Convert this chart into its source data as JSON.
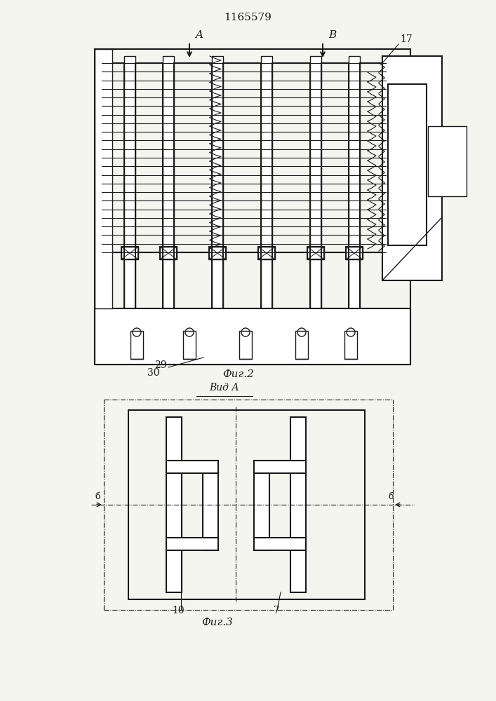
{
  "title": "1165579",
  "fig2_label": "Фиг.2",
  "fig3_label": "Фиг.3",
  "vid_a_label": "Вид А",
  "bg_color": "#f5f5f0",
  "line_color": "#1a1a1a",
  "label_A": "A",
  "label_B": "B",
  "label_17": "17",
  "label_29": "29",
  "label_30": "30",
  "label_10": "10",
  "label_7": "7",
  "label_b_left": "б",
  "label_b_right": "б"
}
